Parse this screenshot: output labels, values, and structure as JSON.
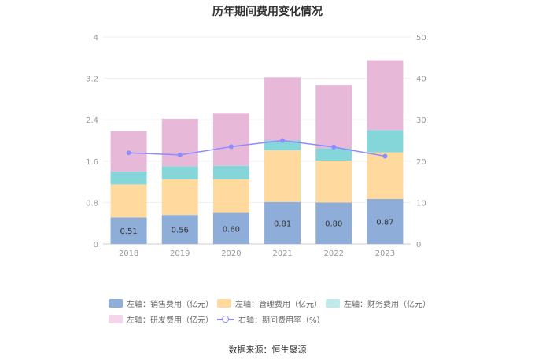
{
  "chart_data": {
    "type": "bar",
    "title": "历年期间费用变化情况",
    "categories": [
      "2018",
      "2019",
      "2020",
      "2021",
      "2022",
      "2023"
    ],
    "series": [
      {
        "name": "左轴：销售费用（亿元）",
        "values": [
          0.51,
          0.56,
          0.6,
          0.81,
          0.8,
          0.87
        ],
        "color": "#8eadd9",
        "axis": "left"
      },
      {
        "name": "左轴：管理费用（亿元）",
        "values": [
          0.64,
          0.69,
          0.65,
          1.0,
          0.81,
          0.9
        ],
        "color": "#ffd99e",
        "axis": "left"
      },
      {
        "name": "左轴：财务费用（亿元）",
        "values": [
          0.25,
          0.25,
          0.26,
          0.19,
          0.24,
          0.43
        ],
        "color": "#85d6d9",
        "axis": "left"
      },
      {
        "name": "左轴：研发费用（亿元）",
        "values": [
          0.78,
          0.92,
          1.01,
          1.22,
          1.22,
          1.35
        ],
        "color": "#e8b8d9",
        "axis": "left"
      },
      {
        "name": "右轴：期间费用率（%）",
        "type": "line",
        "values": [
          22.0,
          21.5,
          23.5,
          25.0,
          23.4,
          21.2
        ],
        "color": "#8c8cff",
        "axis": "right"
      }
    ],
    "data_labels": [
      "0.51",
      "0.56",
      "0.60",
      "0.81",
      "0.80",
      "0.87"
    ],
    "y_left": {
      "min": 0,
      "max": 4,
      "ticks": [
        "0",
        "0.8",
        "1.6",
        "2.4",
        "3.2",
        "4"
      ]
    },
    "y_right": {
      "min": 0,
      "max": 50,
      "ticks": [
        "0",
        "10",
        "20",
        "30",
        "40",
        "50"
      ]
    },
    "grid": true,
    "legend_position": "bottom"
  },
  "source": "数据来源：恒生聚源"
}
